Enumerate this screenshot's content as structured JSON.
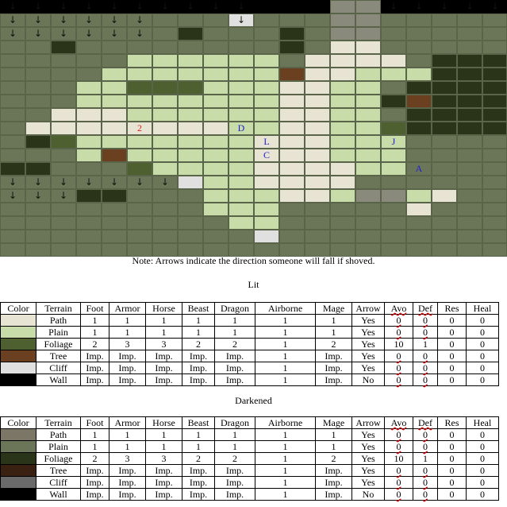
{
  "colors": {
    "wall": "#000000",
    "dark_plain": "#6b7658",
    "lit_plain": "#c8dcaa",
    "lit_path": "#e8e4d4",
    "lit_foliage": "#4e6030",
    "dark_foliage": "#2a3418",
    "dark_path": "#7c7666",
    "dark_tree": "#3a2010",
    "lit_tree": "#6b4020",
    "cliff": "#e0e0e0",
    "dark_cliff": "#6a6a6a",
    "grey": "#8a8a7c"
  },
  "map": {
    "rows": [
      "WWWWWWWWWWWWWGGWWWWW",
      "DDDDDDDDDCDDDGGDDDDD",
      "DDDDDDDKDDDKDGGDDDDD",
      "DDKDDDDDDDDKDLLDDDDD",
      "DDDDDPPPPPPDLLLLDKKK",
      "DDDDPPPPPPPTLLPPPKKK",
      "DDDPPFFFPPPLLPPDKKKK",
      "DDDPPPPPPPPLLPPKRKKK",
      "DDLLLPPPPPPLLPPDKKKK",
      "DLLLLLLLLPPLLPPFKKKK",
      "DKFPPPPPPPLLLPPPDDDD",
      "DDDPRPPPPPLLLPPPDDDD",
      "KKDDDFPPPPLLLLPPDDDD",
      "DDDDDDDCPPLLLLDDDDDD",
      "DDDKKDDDPPPLLPGGPLDD",
      "DDDDDDDDPPPDDDDDLDDD",
      "DDDDDDDDDPPDDDDDDDDD",
      "DDDDDDDDDDCDDDDDDDDD",
      "DDDDDDDDDDDDDDDDDDDD"
    ],
    "arrows": [
      {
        "row": 0,
        "cols": [
          0,
          1,
          2,
          3,
          4,
          5,
          6,
          7,
          8,
          9,
          15,
          16,
          17,
          18,
          19
        ]
      },
      {
        "row": 1,
        "cols": [
          0,
          1,
          2,
          3,
          4,
          5,
          9
        ]
      },
      {
        "row": 2,
        "cols": [
          0,
          1,
          2,
          3,
          4,
          5
        ]
      },
      {
        "row": 13,
        "cols": [
          0,
          1,
          2,
          3,
          4,
          5,
          6
        ]
      },
      {
        "row": 14,
        "cols": [
          0,
          1,
          2
        ]
      }
    ],
    "labels": [
      {
        "text": "2",
        "row": 9,
        "col": 5,
        "color": "#e02020"
      },
      {
        "text": "D",
        "row": 9,
        "col": 9,
        "color": "#2020d0"
      },
      {
        "text": "L",
        "row": 10,
        "col": 10,
        "color": "#2020d0"
      },
      {
        "text": "C",
        "row": 11,
        "col": 10,
        "color": "#2020d0"
      },
      {
        "text": "J",
        "row": 10,
        "col": 15,
        "color": "#2020d0"
      },
      {
        "text": "A",
        "row": 12,
        "col": 16,
        "color": "#2020d0"
      }
    ]
  },
  "note": "Note: Arrows indicate the direction someone will fall if shoved.",
  "lit": {
    "heading": "Lit",
    "headers": [
      "Color",
      "Terrain",
      "Foot",
      "Armor",
      "Horse",
      "Beast",
      "Dragon",
      "Airborne",
      "Mage",
      "Arrow",
      "Avo",
      "Def",
      "Res",
      "Heal"
    ],
    "rows": [
      {
        "color": "#e8e4d4",
        "cells": [
          "Path",
          "1",
          "1",
          "1",
          "1",
          "1",
          "1",
          "1",
          "Yes",
          "0",
          "0",
          "0",
          "0"
        ]
      },
      {
        "color": "#c8dcaa",
        "cells": [
          "Plain",
          "1",
          "1",
          "1",
          "1",
          "1",
          "1",
          "1",
          "Yes",
          "0",
          "0",
          "0",
          "0"
        ]
      },
      {
        "color": "#4e6030",
        "cells": [
          "Foliage",
          "2",
          "3",
          "3",
          "2",
          "2",
          "1",
          "2",
          "Yes",
          "10",
          "1",
          "0",
          "0"
        ]
      },
      {
        "color": "#6b4020",
        "cells": [
          "Tree",
          "Imp.",
          "Imp.",
          "Imp.",
          "Imp.",
          "Imp.",
          "1",
          "Imp.",
          "Yes",
          "0",
          "0",
          "0",
          "0"
        ]
      },
      {
        "color": "#e0e0e0",
        "cells": [
          "Cliff",
          "Imp.",
          "Imp.",
          "Imp.",
          "Imp.",
          "Imp.",
          "1",
          "Imp.",
          "Yes",
          "0",
          "0",
          "0",
          "0"
        ]
      },
      {
        "color": "#000000",
        "cells": [
          "Wall",
          "Imp.",
          "Imp.",
          "Imp.",
          "Imp.",
          "Imp.",
          "1",
          "Imp.",
          "No",
          "0",
          "0",
          "0",
          "0"
        ]
      }
    ]
  },
  "darkened": {
    "heading": "Darkened",
    "headers": [
      "Color",
      "Terrain",
      "Foot",
      "Armor",
      "Horse",
      "Beast",
      "Dragon",
      "Airborne",
      "Mage",
      "Arrow",
      "Avo",
      "Def",
      "Res",
      "Heal"
    ],
    "rows": [
      {
        "color": "#7c7666",
        "cells": [
          "Path",
          "1",
          "1",
          "1",
          "1",
          "1",
          "1",
          "1",
          "Yes",
          "0",
          "0",
          "0",
          "0"
        ]
      },
      {
        "color": "#6b7658",
        "cells": [
          "Plain",
          "1",
          "1",
          "1",
          "1",
          "1",
          "1",
          "1",
          "Yes",
          "0",
          "0",
          "0",
          "0"
        ]
      },
      {
        "color": "#2a3418",
        "cells": [
          "Foliage",
          "2",
          "3",
          "3",
          "2",
          "2",
          "1",
          "2",
          "Yes",
          "10",
          "1",
          "0",
          "0"
        ]
      },
      {
        "color": "#3a2010",
        "cells": [
          "Tree",
          "Imp.",
          "Imp.",
          "Imp.",
          "Imp.",
          "Imp.",
          "1",
          "Imp.",
          "Yes",
          "0",
          "0",
          "0",
          "0"
        ]
      },
      {
        "color": "#6a6a6a",
        "cells": [
          "Cliff",
          "Imp.",
          "Imp.",
          "Imp.",
          "Imp.",
          "Imp.",
          "1",
          "Imp.",
          "Yes",
          "0",
          "0",
          "0",
          "0"
        ]
      },
      {
        "color": "#000000",
        "cells": [
          "Wall",
          "Imp.",
          "Imp.",
          "Imp.",
          "Imp.",
          "Imp.",
          "1",
          "Imp.",
          "No",
          "0",
          "0",
          "0",
          "0"
        ]
      }
    ]
  },
  "arrow_glyph": "↓"
}
